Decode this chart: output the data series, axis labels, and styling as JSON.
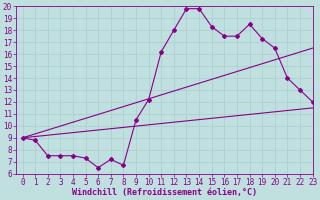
{
  "xlabel": "Windchill (Refroidissement éolien,°C)",
  "bg_color": "#c0e0e0",
  "line_color": "#880088",
  "grid_color": "#aacccc",
  "ylim": [
    6,
    20
  ],
  "xlim": [
    -0.5,
    23
  ],
  "yticks": [
    6,
    7,
    8,
    9,
    10,
    11,
    12,
    13,
    14,
    15,
    16,
    17,
    18,
    19,
    20
  ],
  "xticks": [
    0,
    1,
    2,
    3,
    4,
    5,
    6,
    7,
    8,
    9,
    10,
    11,
    12,
    13,
    14,
    15,
    16,
    17,
    18,
    19,
    20,
    21,
    22,
    23
  ],
  "line1_x": [
    0,
    1,
    2,
    3,
    4,
    5,
    6,
    7,
    8,
    9,
    10,
    11,
    12,
    13,
    14,
    15,
    16,
    17,
    18,
    19,
    20,
    21,
    22,
    23
  ],
  "line1_y": [
    9.0,
    8.8,
    7.5,
    7.5,
    7.5,
    7.3,
    6.5,
    7.2,
    6.7,
    10.5,
    12.2,
    16.2,
    18.0,
    19.8,
    19.8,
    18.3,
    17.5,
    17.5,
    18.5,
    17.3,
    16.5,
    14.0,
    13.0,
    12.0
  ],
  "line2_x": [
    0,
    23
  ],
  "line2_y": [
    9.0,
    11.5
  ],
  "line3_x": [
    0,
    23
  ],
  "line3_y": [
    9.0,
    16.5
  ],
  "tick_fontsize": 5.5,
  "label_fontsize": 6.0
}
